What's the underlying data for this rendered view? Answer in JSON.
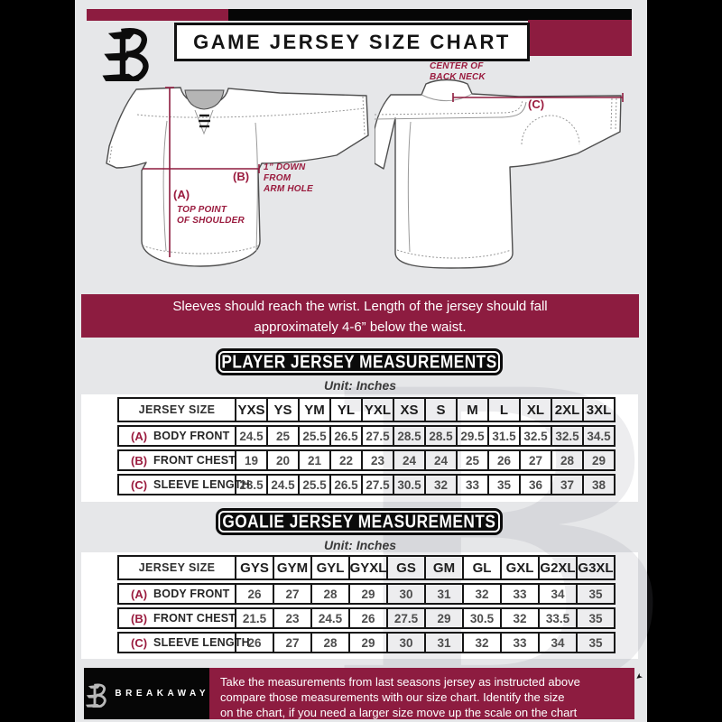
{
  "header": {
    "title": "GAME JERSEY SIZE CHART"
  },
  "annotations": {
    "a_key": "(A)",
    "a_line1": "TOP POINT",
    "a_line2": "OF SHOULDER",
    "b_key": "(B)",
    "b_line1": "1” DOWN",
    "b_line2": "FROM",
    "b_line3": "ARM HOLE",
    "c_key": "(C)",
    "c_line1": "CENTER OF",
    "c_line2": "BACK NECK"
  },
  "note": {
    "line1": "Sleeves should reach the wrist. Length of the jersey should fall",
    "line2": "approximately 4-6” below the waist."
  },
  "player": {
    "title": "PLAYER JERSEY MEASUREMENTS",
    "unit": "Unit: Inches",
    "table": {
      "corner_label": "JERSEY SIZE",
      "columns": [
        "YXS",
        "YS",
        "YM",
        "YL",
        "YXL",
        "XS",
        "S",
        "M",
        "L",
        "XL",
        "2XL",
        "3XL"
      ],
      "rows": [
        {
          "key": "(A)",
          "label": "BODY FRONT",
          "values": [
            "24.5",
            "25",
            "25.5",
            "26.5",
            "27.5",
            "28.5",
            "28.5",
            "29.5",
            "31.5",
            "32.5",
            "32.5",
            "34.5"
          ]
        },
        {
          "key": "(B)",
          "label": "FRONT CHEST",
          "values": [
            "19",
            "20",
            "21",
            "22",
            "23",
            "24",
            "24",
            "25",
            "26",
            "27",
            "28",
            "29"
          ]
        },
        {
          "key": "(C)",
          "label": "SLEEVE LENGTH",
          "values": [
            "23.5",
            "24.5",
            "25.5",
            "26.5",
            "27.5",
            "30.5",
            "32",
            "33",
            "35",
            "36",
            "37",
            "38"
          ]
        }
      ]
    }
  },
  "goalie": {
    "title": "GOALIE JERSEY MEASUREMENTS",
    "unit": "Unit: Inches",
    "table": {
      "corner_label": "JERSEY SIZE",
      "columns": [
        "GYS",
        "GYM",
        "GYL",
        "GYXL",
        "GS",
        "GM",
        "GL",
        "GXL",
        "G2XL",
        "G3XL"
      ],
      "rows": [
        {
          "key": "(A)",
          "label": "BODY FRONT",
          "values": [
            "26",
            "27",
            "28",
            "29",
            "30",
            "31",
            "32",
            "33",
            "34",
            "35"
          ]
        },
        {
          "key": "(B)",
          "label": "FRONT CHEST",
          "values": [
            "21.5",
            "23",
            "24.5",
            "26",
            "27.5",
            "29",
            "30.5",
            "32",
            "33.5",
            "35"
          ]
        },
        {
          "key": "(C)",
          "label": "SLEEVE LENGTH",
          "values": [
            "26",
            "27",
            "28",
            "29",
            "30",
            "31",
            "32",
            "33",
            "34",
            "35"
          ]
        }
      ]
    }
  },
  "footer": {
    "brand": "BREAKAWAY",
    "line1": "Take the measurements from last seasons jersey as instructed above",
    "line2": "compare those measurements  with our size chart. Identify the size",
    "line3": "on the chart, if you need a larger size move up the scale on the chart"
  },
  "watermark": "B",
  "colors": {
    "maroon": "#8D1C40",
    "annotation_red": "#9A1B3E",
    "black": "#000000",
    "background_gray": "#E6E7E9",
    "panel_white": "#FFFFFF",
    "table_border": "#161616"
  }
}
